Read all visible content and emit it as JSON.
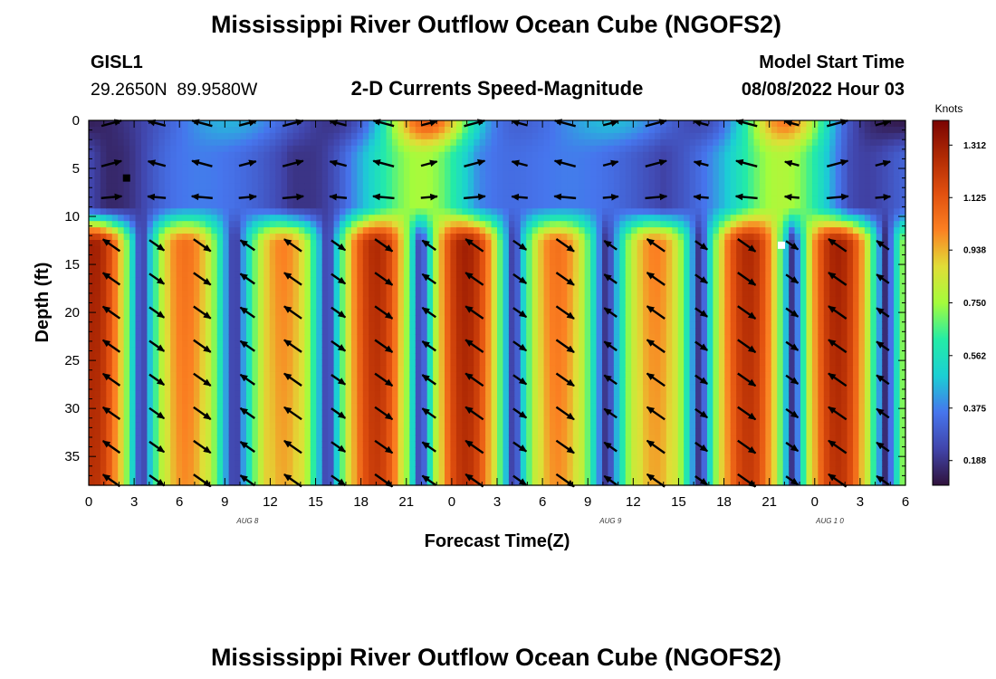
{
  "header": {
    "title": "Mississippi River Outflow Ocean Cube (NGOFS2)",
    "station_id": "GISL1",
    "station_coords": "29.2650N  89.9580W",
    "plot_subtitle": "2-D Currents Speed-Magnitude",
    "model_start_label": "Model Start Time",
    "model_start_value": "08/08/2022 Hour 03"
  },
  "footer": {
    "title_repeat": "Mississippi River Outflow Ocean Cube (NGOFS2)"
  },
  "chart_data": {
    "type": "heatmap",
    "title": "2-D Currents Speed-Magnitude",
    "xlabel": "Forecast Time(Z)",
    "ylabel": "Depth (ft)",
    "x_tick_labels": [
      "0",
      "3",
      "6",
      "9",
      "12",
      "15",
      "18",
      "21",
      "0",
      "3",
      "6",
      "9",
      "12",
      "15",
      "18",
      "21",
      "0",
      "3",
      "6"
    ],
    "x_hours_range": [
      0,
      54
    ],
    "date_labels": [
      {
        "text": "AUG 8",
        "hour": 10.5
      },
      {
        "text": "AUG 9",
        "hour": 34.5
      },
      {
        "text": "AUG 10",
        "hour": 49
      }
    ],
    "y_ticks": [
      0,
      5,
      10,
      15,
      20,
      25,
      30,
      35
    ],
    "ylim": [
      0,
      38
    ],
    "y_inverted": true,
    "colorbar": {
      "unit": "Knots",
      "ticks": [
        "0.188",
        "0.375",
        "0.562",
        "0.750",
        "0.938",
        "1.125",
        "1.312"
      ],
      "range": [
        0.1,
        1.4
      ],
      "colormap": "turbo"
    },
    "max_speed_marker": {
      "hour": 45.8,
      "depth": 13
    },
    "min_speed_marker": {
      "hour": 2.5,
      "depth": 6
    },
    "colors": {
      "marker_min": "#000000",
      "marker_max": "#ffffff",
      "vectors": "#000000"
    }
  }
}
